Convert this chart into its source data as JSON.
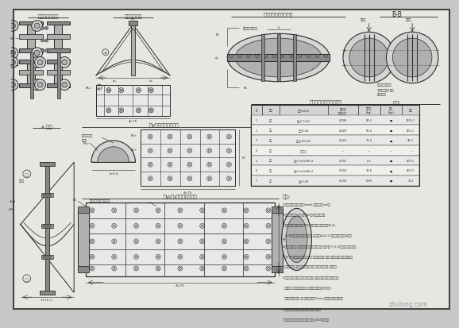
{
  "bg_outer": "#c8c8c8",
  "bg_inner": "#e8e6e0",
  "lc": "#2a2a2a",
  "lc_light": "#555555",
  "fill_dark": "#888888",
  "fill_mid": "#b0b0b0",
  "fill_light": "#d4d4d4",
  "fill_vlight": "#e8e8e8",
  "watermark": "zhulong.com",
  "title_tl": "全段段拼装端头",
  "title_tm": "加劲钢板大样",
  "title_tr": "全段段拼装端头钢制板",
  "title_bb": "B-B",
  "title_al": "A 大样",
  "title_ml": "管V凹凸接头钢板大样",
  "title_bl": "管V(凹)凸接头钢板大样",
  "table_title": "拱肋合拢段支材料数量表",
  "table_unit": "(单位)",
  "notes_title": "说明:",
  "notes": [
    "1.本图尺寸单位采用毫米(mm),标高采用米(m)。",
    "2.本图适用于管V(凸)型,管V(凹)型接头详图。",
    "3.凹型接头连接板全周按M16高强螺栓,在管板对应①,②,",
    "  ③,④角与加劲肋上的螺孔连接,螺栓间距≤12.5,拱肋合拢段不少于4处。",
    "4.凸型端头钢板,按《公路桥梁设计通用规范》(现行)第(7.0.3)条规定,拱肋合拢段",
    "  管V(凹)凸接头钢板大样节1处,不再另外加工,贯通,以上为凸型端头与凹型端头",
    "  的连接节点;其余加工情况见节点图,中间板计算确定,对应处。",
    "5.如管接头处节点板连接方式的配合,全套段拱肋合拢段管板的焊接",
    "  连接按此,凸型端头节点图,全部节点图整体为1组(不),",
    "  外端接头按节点图-拼,全部为单侧于7mm,技术规程中工艺要求。",
    "6.其他施工工艺遵守有关规范、规程的规定。",
    "7.图中钢材规范料按强度等级不低于Q345的要求。"
  ],
  "table_headers": [
    "序",
    "材料",
    "规格(mm)",
    "数量/单\n位(套/件)",
    "单件重\n(kg)",
    "总重\n(kg)",
    "备注"
  ],
  "table_col_widths": [
    14,
    22,
    62,
    38,
    28,
    28,
    22
  ],
  "table_rows": [
    [
      "1",
      "钢管",
      "管□7.5-40",
      "4.098",
      "84.4",
      "■",
      "1205.1"
    ],
    [
      "2",
      "钢管",
      "管□5-40",
      "4.028",
      "54.4",
      "■",
      "805.1"
    ],
    [
      "3",
      "钢板",
      "钢板○10×20",
      "4.024",
      "14.4",
      "■",
      "40.3"
    ],
    [
      "4",
      "钢板",
      "2处每处",
      "—",
      "—",
      "—",
      "—"
    ],
    [
      "5",
      "钢管",
      "管○7×4×6H×2",
      "0.002",
      "5.3",
      "■",
      "400.1"
    ],
    [
      "6",
      "钢管",
      "管○7×4×6H×2",
      "0.004",
      "14.8",
      "■",
      "400.1"
    ],
    [
      "7",
      "钢管",
      "管□7-40",
      "0.004",
      "6.89",
      "■",
      "36.1"
    ]
  ]
}
